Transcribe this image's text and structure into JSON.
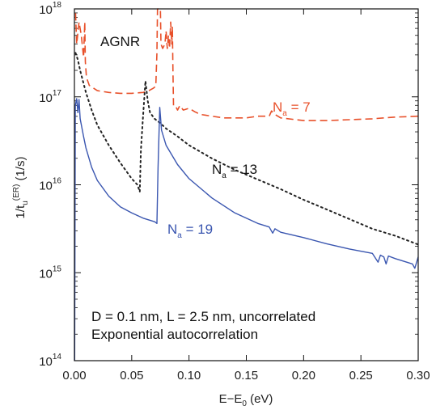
{
  "chart_data": {
    "type": "line",
    "title": "",
    "xlabel": "E−E",
    "xlabel_sub": "0",
    "xlabel_unit": " (eV)",
    "ylabel": "1/t",
    "ylabel_sub": "u",
    "ylabel_sup": "(ER)",
    "ylabel_unit": " (1/s)",
    "xlim": [
      0,
      0.3
    ],
    "ylim_log10": [
      14,
      18
    ],
    "yscale": "log",
    "grid": false,
    "x_ticks": [
      {
        "value": 0.0,
        "label": "0.00"
      },
      {
        "value": 0.05,
        "label": "0.05"
      },
      {
        "value": 0.1,
        "label": "0.10"
      },
      {
        "value": 0.15,
        "label": "0.15"
      },
      {
        "value": 0.2,
        "label": "0.20"
      },
      {
        "value": 0.25,
        "label": "0.25"
      },
      {
        "value": 0.3,
        "label": "0.30"
      }
    ],
    "y_ticks": [
      {
        "exp": 14,
        "base": "10",
        "sup": "14"
      },
      {
        "exp": 15,
        "base": "10",
        "sup": "15"
      },
      {
        "exp": 16,
        "base": "10",
        "sup": "16"
      },
      {
        "exp": 17,
        "base": "10",
        "sup": "17"
      },
      {
        "exp": 18,
        "base": "10",
        "sup": "18"
      }
    ],
    "annotations": {
      "system": "AGNR",
      "params_line1": "D = 0.1 nm, L = 2.5 nm, uncorrelated",
      "params_line2": "Exponential autocorrelation"
    },
    "series": [
      {
        "label_main": "N",
        "label_sub": "a",
        "label_rest": " = 7",
        "color": "#e8502a",
        "dash": "dashed",
        "points": [
          [
            0.001,
            17.95
          ],
          [
            0.002,
            17.6
          ],
          [
            0.004,
            17.85
          ],
          [
            0.006,
            17.7
          ],
          [
            0.008,
            17.45
          ],
          [
            0.009,
            17.85
          ],
          [
            0.0095,
            17.4
          ],
          [
            0.0105,
            17.22
          ],
          [
            0.013,
            17.13
          ],
          [
            0.02,
            17.07
          ],
          [
            0.03,
            17.05
          ],
          [
            0.04,
            17.04
          ],
          [
            0.05,
            17.04
          ],
          [
            0.06,
            17.05
          ],
          [
            0.065,
            17.07
          ],
          [
            0.069,
            17.1
          ],
          [
            0.071,
            17.12
          ],
          [
            0.072,
            17.5
          ],
          [
            0.0725,
            18.05
          ],
          [
            0.075,
            18.05
          ],
          [
            0.0755,
            17.6
          ],
          [
            0.077,
            17.55
          ],
          [
            0.079,
            17.6
          ],
          [
            0.08,
            17.75
          ],
          [
            0.081,
            17.55
          ],
          [
            0.082,
            17.7
          ],
          [
            0.083,
            17.55
          ],
          [
            0.084,
            17.85
          ],
          [
            0.085,
            17.6
          ],
          [
            0.0855,
            17.8
          ],
          [
            0.086,
            17.3
          ],
          [
            0.0865,
            16.9
          ],
          [
            0.088,
            16.9
          ],
          [
            0.09,
            16.85
          ],
          [
            0.092,
            16.9
          ],
          [
            0.095,
            16.85
          ],
          [
            0.1,
            16.87
          ],
          [
            0.105,
            16.83
          ],
          [
            0.11,
            16.8
          ],
          [
            0.12,
            16.78
          ],
          [
            0.13,
            16.76
          ],
          [
            0.14,
            16.76
          ],
          [
            0.15,
            16.76
          ],
          [
            0.16,
            16.78
          ],
          [
            0.17,
            16.78
          ],
          [
            0.172,
            16.84
          ],
          [
            0.175,
            16.8
          ],
          [
            0.18,
            16.76
          ],
          [
            0.2,
            16.73
          ],
          [
            0.22,
            16.73
          ],
          [
            0.24,
            16.74
          ],
          [
            0.26,
            16.75
          ],
          [
            0.28,
            16.77
          ],
          [
            0.3,
            16.78
          ]
        ]
      },
      {
        "label_main": "N",
        "label_sub": "a",
        "label_rest": " = 13",
        "color": "#222222",
        "dash": "dotted",
        "points": [
          [
            0.001,
            17.5
          ],
          [
            0.003,
            17.42
          ],
          [
            0.005,
            17.3
          ],
          [
            0.01,
            17.05
          ],
          [
            0.015,
            16.85
          ],
          [
            0.02,
            16.68
          ],
          [
            0.03,
            16.45
          ],
          [
            0.04,
            16.25
          ],
          [
            0.05,
            16.07
          ],
          [
            0.055,
            16.0
          ],
          [
            0.057,
            15.92
          ],
          [
            0.058,
            16.4
          ],
          [
            0.06,
            16.8
          ],
          [
            0.062,
            17.18
          ],
          [
            0.064,
            16.95
          ],
          [
            0.066,
            16.82
          ],
          [
            0.07,
            16.75
          ],
          [
            0.075,
            16.7
          ],
          [
            0.08,
            16.64
          ],
          [
            0.09,
            16.55
          ],
          [
            0.1,
            16.45
          ],
          [
            0.12,
            16.3
          ],
          [
            0.14,
            16.17
          ],
          [
            0.16,
            16.06
          ],
          [
            0.18,
            15.95
          ],
          [
            0.2,
            15.83
          ],
          [
            0.22,
            15.72
          ],
          [
            0.24,
            15.61
          ],
          [
            0.26,
            15.5
          ],
          [
            0.28,
            15.42
          ],
          [
            0.3,
            15.32
          ]
        ]
      },
      {
        "label_main": "N",
        "label_sub": "a",
        "label_rest": " = 19",
        "color": "#3a56b0",
        "dash": "solid",
        "points": [
          [
            0.0002,
            14.0
          ],
          [
            0.0008,
            16.9
          ],
          [
            0.002,
            16.98
          ],
          [
            0.003,
            16.82
          ],
          [
            0.004,
            16.97
          ],
          [
            0.005,
            16.75
          ],
          [
            0.008,
            16.55
          ],
          [
            0.01,
            16.42
          ],
          [
            0.015,
            16.2
          ],
          [
            0.02,
            16.05
          ],
          [
            0.03,
            15.87
          ],
          [
            0.04,
            15.75
          ],
          [
            0.05,
            15.68
          ],
          [
            0.06,
            15.62
          ],
          [
            0.07,
            15.58
          ],
          [
            0.072,
            15.56
          ],
          [
            0.073,
            16.2
          ],
          [
            0.0745,
            16.88
          ],
          [
            0.076,
            16.62
          ],
          [
            0.08,
            16.45
          ],
          [
            0.09,
            16.23
          ],
          [
            0.1,
            16.07
          ],
          [
            0.12,
            15.85
          ],
          [
            0.14,
            15.68
          ],
          [
            0.16,
            15.56
          ],
          [
            0.17,
            15.52
          ],
          [
            0.173,
            15.45
          ],
          [
            0.175,
            15.5
          ],
          [
            0.18,
            15.46
          ],
          [
            0.2,
            15.4
          ],
          [
            0.22,
            15.33
          ],
          [
            0.24,
            15.27
          ],
          [
            0.26,
            15.22
          ],
          [
            0.265,
            15.12
          ],
          [
            0.267,
            15.2
          ],
          [
            0.27,
            15.18
          ],
          [
            0.272,
            15.1
          ],
          [
            0.274,
            15.19
          ],
          [
            0.28,
            15.16
          ],
          [
            0.29,
            15.12
          ],
          [
            0.295,
            15.1
          ],
          [
            0.297,
            15.05
          ],
          [
            0.3,
            15.18
          ]
        ]
      }
    ]
  }
}
